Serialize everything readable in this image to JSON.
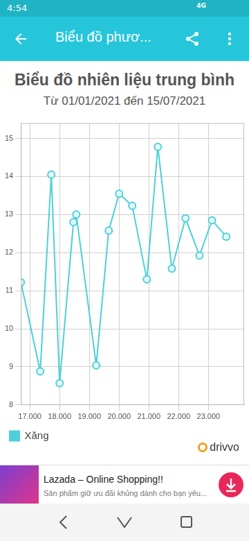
{
  "status_bar": {
    "time": "4:54",
    "network": "4G"
  },
  "app_bar": {
    "title": "Biểu đồ phươ..."
  },
  "chart_data": {
    "type": "line",
    "title": "Biểu đồ nhiên liệu trung bình",
    "subtitle": "Từ 01/01/2021 đến 15/07/2021",
    "x": [
      16700,
      17350,
      17720,
      18000,
      18465,
      18560,
      19230,
      19650,
      20000,
      20440,
      20930,
      21300,
      21770,
      22230,
      22700,
      23120,
      23600
    ],
    "series": [
      {
        "name": "Xăng",
        "color": "#4dd0d9",
        "marker": "circle",
        "values": [
          11.22,
          8.88,
          14.05,
          8.57,
          12.8,
          13.0,
          9.04,
          12.58,
          13.55,
          13.23,
          11.3,
          14.78,
          11.58,
          12.9,
          11.92,
          12.85,
          12.42
        ]
      }
    ],
    "xlim": [
      16700,
      24200
    ],
    "xticks": [
      {
        "value": 17000,
        "label": "17.000"
      },
      {
        "value": 18000,
        "label": "18.000"
      },
      {
        "value": 19000,
        "label": "19.000"
      },
      {
        "value": 20000,
        "label": "20.000"
      },
      {
        "value": 21000,
        "label": "21.000"
      },
      {
        "value": 22000,
        "label": "22.000"
      },
      {
        "value": 23000,
        "label": "23.000"
      }
    ],
    "ylim": [
      8,
      15.4
    ],
    "yticks": [
      8,
      9,
      10,
      11,
      12,
      13,
      14,
      15
    ],
    "grid": true,
    "legend": "bottom-left"
  },
  "watermark": "drivvo",
  "ad": {
    "title": "Lazada – Online Shopping!!",
    "text": "Sản phẩm giữ ưu đãi khủng dành cho bạn yêu..."
  }
}
